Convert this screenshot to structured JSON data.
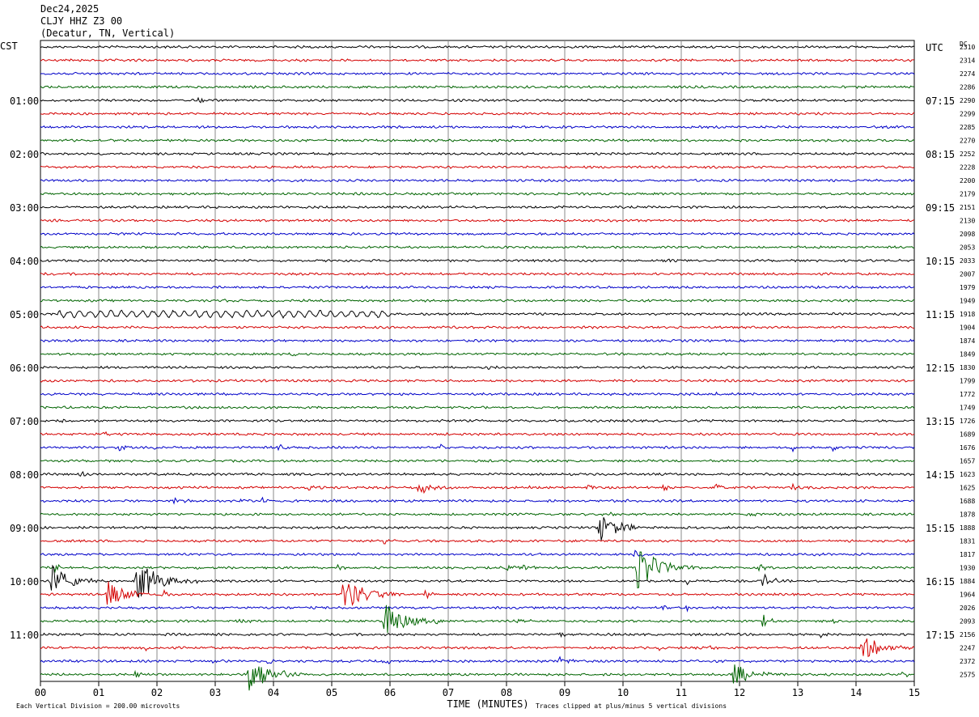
{
  "header": {
    "date": "Dec24,2025",
    "station": "CLJY HHZ Z3 00",
    "location": "(Decatur, TN, Vertical)"
  },
  "chart_data": {
    "type": "line",
    "subtype": "helicorder",
    "left_axis_label": "CST",
    "right_axis_label": "UTC",
    "dc_label": "DC",
    "xlabel": "TIME (MINUTES)",
    "xlim": [
      0,
      15
    ],
    "x_tick_labels": [
      "00",
      "01",
      "02",
      "03",
      "04",
      "05",
      "06",
      "07",
      "08",
      "09",
      "10",
      "11",
      "12",
      "13",
      "14",
      "15"
    ],
    "left_hour_labels": [
      {
        "row": 4,
        "label": "01:00"
      },
      {
        "row": 8,
        "label": "02:00"
      },
      {
        "row": 12,
        "label": "03:00"
      },
      {
        "row": 16,
        "label": "04:00"
      },
      {
        "row": 20,
        "label": "05:00"
      },
      {
        "row": 24,
        "label": "06:00"
      },
      {
        "row": 28,
        "label": "07:00"
      },
      {
        "row": 32,
        "label": "08:00"
      },
      {
        "row": 36,
        "label": "09:00"
      },
      {
        "row": 40,
        "label": "10:00"
      },
      {
        "row": 44,
        "label": "11:00"
      }
    ],
    "right_hour_labels": [
      {
        "row": 0,
        "label": "UTC"
      },
      {
        "row": 4,
        "label": "07:15"
      },
      {
        "row": 8,
        "label": "08:15"
      },
      {
        "row": 12,
        "label": "09:15"
      },
      {
        "row": 16,
        "label": "10:15"
      },
      {
        "row": 20,
        "label": "11:15"
      },
      {
        "row": 24,
        "label": "12:15"
      },
      {
        "row": 28,
        "label": "13:15"
      },
      {
        "row": 32,
        "label": "14:15"
      },
      {
        "row": 36,
        "label": "15:15"
      },
      {
        "row": 40,
        "label": "16:15"
      },
      {
        "row": 44,
        "label": "17:15"
      }
    ],
    "trace_colors": [
      "#000000",
      "#d40000",
      "#0000c8",
      "#006400"
    ],
    "dc_offsets": [
      "2310",
      "2314",
      "2274",
      "2286",
      "2290",
      "2299",
      "2285",
      "2270",
      "2252",
      "2228",
      "2200",
      "2179",
      "2151",
      "2130",
      "2098",
      "2053",
      "2033",
      "2007",
      "1979",
      "1949",
      "1918",
      "1904",
      "1874",
      "1849",
      "1830",
      "1799",
      "1772",
      "1749",
      "1726",
      "1689",
      "1676",
      "1657",
      "1623",
      "1625",
      "1688",
      "1878",
      "1888",
      "1831",
      "1817",
      "1930",
      "1884",
      "1964",
      "2026",
      "2093",
      "2156",
      "2247",
      "2372",
      "2575"
    ],
    "events": [
      {
        "row": 4,
        "minute": 2.7,
        "amp": 4,
        "w": 0.12
      },
      {
        "row": 16,
        "minute": 10.7,
        "amp": 3,
        "w": 0.1
      },
      {
        "row": 19,
        "minute": 3.1,
        "amp": 3,
        "w": 0.1
      },
      {
        "row": 23,
        "minute": 4.3,
        "amp": 3,
        "w": 0.1
      },
      {
        "row": 24,
        "minute": 7.7,
        "amp": 4,
        "w": 0.1
      },
      {
        "row": 26,
        "minute": 11.6,
        "amp": 3,
        "w": 0.1
      },
      {
        "row": 28,
        "minute": 0.3,
        "amp": 3,
        "w": 0.1
      },
      {
        "row": 28,
        "minute": 8.9,
        "amp": 3,
        "w": 0.1
      },
      {
        "row": 29,
        "minute": 1.1,
        "amp": 3,
        "w": 0.1
      },
      {
        "row": 30,
        "minute": 1.35,
        "amp": 6,
        "w": 0.1
      },
      {
        "row": 30,
        "minute": 1.95,
        "amp": 4,
        "w": 0.1
      },
      {
        "row": 30,
        "minute": 4.1,
        "amp": 5,
        "w": 0.1
      },
      {
        "row": 30,
        "minute": 6.85,
        "amp": 5,
        "w": 0.1
      },
      {
        "row": 30,
        "minute": 12.9,
        "amp": 5,
        "w": 0.1
      },
      {
        "row": 30,
        "minute": 13.6,
        "amp": 4,
        "w": 0.1
      },
      {
        "row": 32,
        "minute": 0.7,
        "amp": 4,
        "w": 0.1
      },
      {
        "row": 33,
        "minute": 2.5,
        "amp": 3,
        "w": 0.1
      },
      {
        "row": 33,
        "minute": 4.6,
        "amp": 4,
        "w": 0.1
      },
      {
        "row": 33,
        "minute": 6.5,
        "amp": 9,
        "w": 0.15
      },
      {
        "row": 33,
        "minute": 8.4,
        "amp": 3,
        "w": 0.1
      },
      {
        "row": 33,
        "minute": 9.4,
        "amp": 3,
        "w": 0.1
      },
      {
        "row": 33,
        "minute": 10.7,
        "amp": 4,
        "w": 0.1
      },
      {
        "row": 33,
        "minute": 11.6,
        "amp": 5,
        "w": 0.1
      },
      {
        "row": 33,
        "minute": 12.9,
        "amp": 4,
        "w": 0.15
      },
      {
        "row": 34,
        "minute": 2.3,
        "amp": 5,
        "w": 0.15
      },
      {
        "row": 34,
        "minute": 3.4,
        "amp": 4,
        "w": 0.1
      },
      {
        "row": 34,
        "minute": 3.8,
        "amp": 5,
        "w": 0.1
      },
      {
        "row": 34,
        "minute": 5.0,
        "amp": 3,
        "w": 0.1
      },
      {
        "row": 34,
        "minute": 10.0,
        "amp": 3,
        "w": 0.1
      },
      {
        "row": 35,
        "minute": 9.8,
        "amp": 3,
        "w": 0.1
      },
      {
        "row": 35,
        "minute": 12.1,
        "amp": 3,
        "w": 0.1
      },
      {
        "row": 36,
        "minute": 9.6,
        "amp": 18,
        "w": 0.3
      },
      {
        "row": 37,
        "minute": 5.9,
        "amp": 4,
        "w": 0.12
      },
      {
        "row": 38,
        "minute": 5.4,
        "amp": 4,
        "w": 0.12
      },
      {
        "row": 38,
        "minute": 10.2,
        "amp": 5,
        "w": 0.15
      },
      {
        "row": 38,
        "minute": 13.3,
        "amp": 3,
        "w": 0.1
      },
      {
        "row": 39,
        "minute": 10.25,
        "amp": 28,
        "w": 0.35
      },
      {
        "row": 39,
        "minute": 0.25,
        "amp": 5,
        "w": 0.1
      },
      {
        "row": 39,
        "minute": 2.65,
        "amp": 4,
        "w": 0.1
      },
      {
        "row": 39,
        "minute": 5.1,
        "amp": 4,
        "w": 0.1
      },
      {
        "row": 39,
        "minute": 8.0,
        "amp": 5,
        "w": 0.1
      },
      {
        "row": 39,
        "minute": 8.3,
        "amp": 5,
        "w": 0.1
      },
      {
        "row": 39,
        "minute": 12.35,
        "amp": 6,
        "w": 0.12
      },
      {
        "row": 40,
        "minute": 0.2,
        "amp": 20,
        "w": 0.3
      },
      {
        "row": 40,
        "minute": 1.65,
        "amp": 28,
        "w": 0.35
      },
      {
        "row": 40,
        "minute": 11.1,
        "amp": 4,
        "w": 0.1
      },
      {
        "row": 40,
        "minute": 12.4,
        "amp": 9,
        "w": 0.15
      },
      {
        "row": 41,
        "minute": 1.15,
        "amp": 16,
        "w": 0.35
      },
      {
        "row": 41,
        "minute": 2.1,
        "amp": 5,
        "w": 0.1
      },
      {
        "row": 41,
        "minute": 3.2,
        "amp": 3,
        "w": 0.1
      },
      {
        "row": 41,
        "minute": 5.2,
        "amp": 22,
        "w": 0.35
      },
      {
        "row": 41,
        "minute": 6.6,
        "amp": 7,
        "w": 0.12
      },
      {
        "row": 42,
        "minute": 10.7,
        "amp": 4,
        "w": 0.1
      },
      {
        "row": 42,
        "minute": 11.1,
        "amp": 4,
        "w": 0.1
      },
      {
        "row": 43,
        "minute": 3.4,
        "amp": 5,
        "w": 0.1
      },
      {
        "row": 43,
        "minute": 5.9,
        "amp": 26,
        "w": 0.3
      },
      {
        "row": 43,
        "minute": 6.8,
        "amp": 3,
        "w": 0.1
      },
      {
        "row": 43,
        "minute": 8.2,
        "amp": 3,
        "w": 0.1
      },
      {
        "row": 43,
        "minute": 12.4,
        "amp": 8,
        "w": 0.12
      },
      {
        "row": 43,
        "minute": 13.6,
        "amp": 4,
        "w": 0.1
      },
      {
        "row": 44,
        "minute": 8.9,
        "amp": 4,
        "w": 0.1
      },
      {
        "row": 44,
        "minute": 13.4,
        "amp": 3,
        "w": 0.1
      },
      {
        "row": 45,
        "minute": 1.8,
        "amp": 4,
        "w": 0.1
      },
      {
        "row": 45,
        "minute": 10.6,
        "amp": 4,
        "w": 0.1
      },
      {
        "row": 45,
        "minute": 11.5,
        "amp": 3,
        "w": 0.1
      },
      {
        "row": 45,
        "minute": 14.1,
        "amp": 16,
        "w": 0.3
      },
      {
        "row": 46,
        "minute": 2.9,
        "amp": 3,
        "w": 0.1
      },
      {
        "row": 46,
        "minute": 3.9,
        "amp": 4,
        "w": 0.1
      },
      {
        "row": 46,
        "minute": 5.9,
        "amp": 4,
        "w": 0.1
      },
      {
        "row": 46,
        "minute": 8.9,
        "amp": 8,
        "w": 0.12
      },
      {
        "row": 47,
        "minute": 1.6,
        "amp": 5,
        "w": 0.12
      },
      {
        "row": 47,
        "minute": 3.55,
        "amp": 26,
        "w": 0.35
      },
      {
        "row": 47,
        "minute": 11.9,
        "amp": 14,
        "w": 0.3
      },
      {
        "row": 47,
        "minute": 14.8,
        "amp": 4,
        "w": 0.1
      }
    ],
    "long_period_wave": {
      "row": 20,
      "from_minute": 0.3,
      "to_minute": 6.0,
      "amp": 3.5
    },
    "footer_left": "Each Vertical Division =  200.00 microvolts",
    "footer_right": "Traces clipped at plus/minus 5 vertical divisions"
  }
}
